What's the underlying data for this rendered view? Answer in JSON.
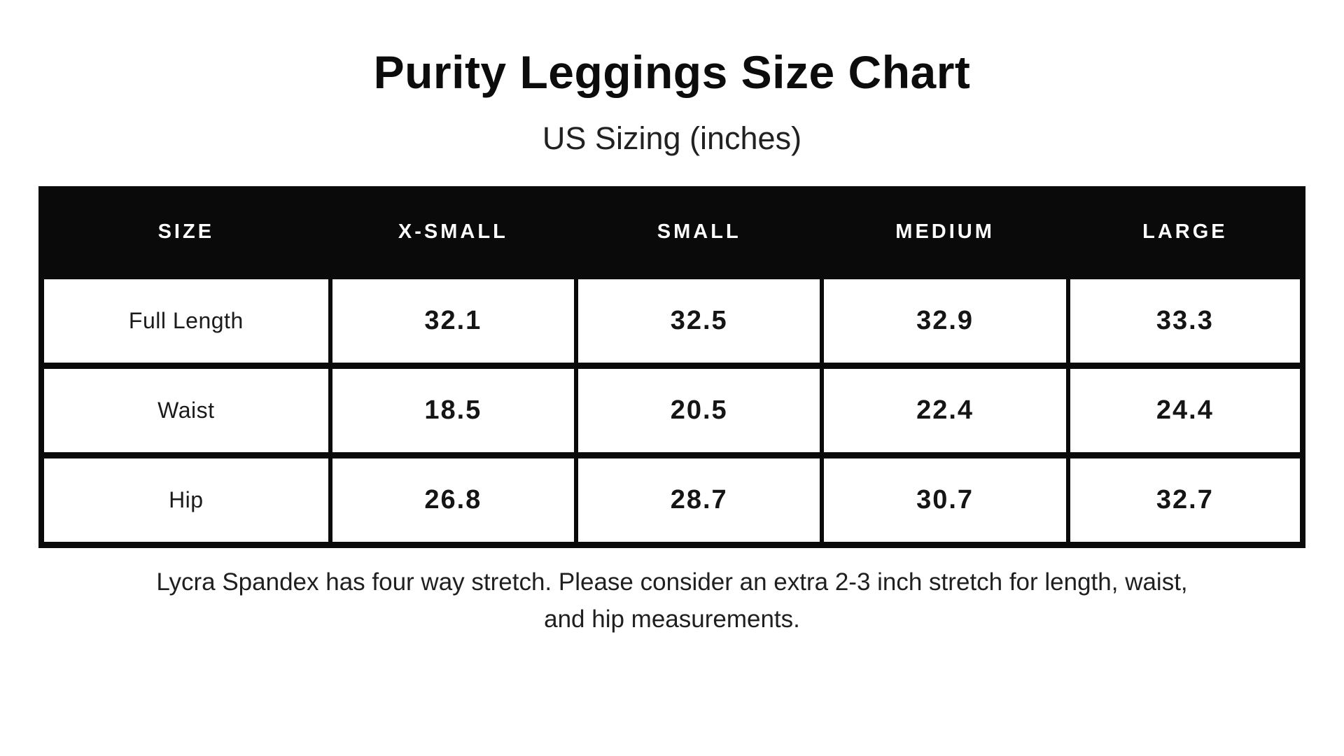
{
  "header": {
    "title": "Purity Leggings Size Chart",
    "subtitle": "US Sizing (inches)"
  },
  "chart_data": {
    "type": "table",
    "title": "Purity Leggings Size Chart",
    "subtitle": "US Sizing (inches)",
    "unit": "inches",
    "columns": [
      "SIZE",
      "X-SMALL",
      "SMALL",
      "MEDIUM",
      "LARGE"
    ],
    "rows": [
      {
        "label": "Full Length",
        "values": [
          "32.1",
          "32.5",
          "32.9",
          "33.3"
        ]
      },
      {
        "label": "Waist",
        "values": [
          "18.5",
          "20.5",
          "22.4",
          "24.4"
        ]
      },
      {
        "label": "Hip",
        "values": [
          "26.8",
          "28.7",
          "30.7",
          "32.7"
        ]
      }
    ],
    "note": "Lycra Spandex has four way stretch. Please consider an extra 2-3 inch stretch for length, waist, and hip measurements."
  },
  "note": {
    "line1": "Lycra Spandex has four way stretch. Please consider an extra 2-3 inch stretch for length, waist,",
    "line2": "and hip measurements."
  },
  "colors": {
    "background": "#ffffff",
    "header_bg": "#0a0a0a",
    "header_text": "#ffffff",
    "border": "#0a0a0a",
    "body_text": "#1b1b1b"
  }
}
